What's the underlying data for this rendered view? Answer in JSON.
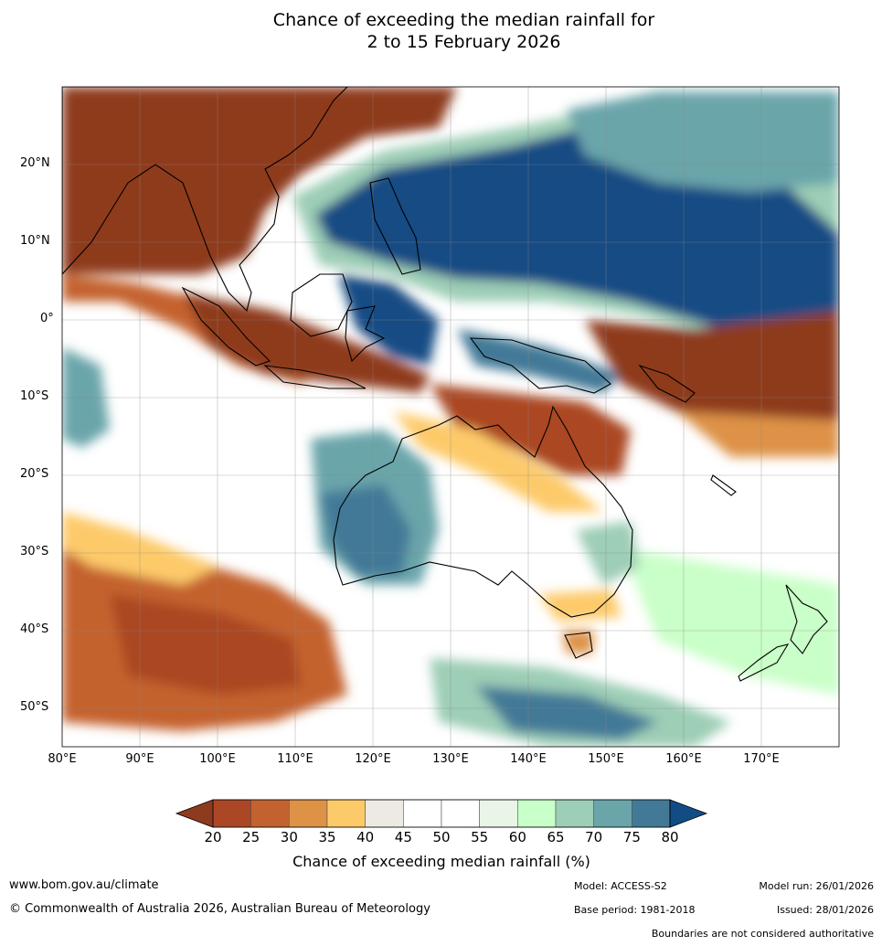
{
  "title_line1": "Chance of exceeding the median rainfall for",
  "title_line2": "2 to 15 February 2026",
  "lat_labels": [
    "20°N",
    "10°N",
    "0°",
    "10°S",
    "20°S",
    "30°S",
    "40°S",
    "50°S"
  ],
  "lon_labels": [
    "80°E",
    "90°E",
    "100°E",
    "110°E",
    "120°E",
    "130°E",
    "140°E",
    "150°E",
    "160°E",
    "170°E"
  ],
  "colorbar": {
    "ticks": [
      "20",
      "25",
      "30",
      "35",
      "40",
      "45",
      "50",
      "55",
      "60",
      "65",
      "70",
      "75",
      "80"
    ],
    "colors": [
      "#8e3a1f",
      "#ab4724",
      "#c4622f",
      "#dd9246",
      "#fdca6a",
      "#edeae4",
      "#ffffff",
      "#ffffff",
      "#e9f5e6",
      "#c9ffc8",
      "#9dceb6",
      "#6aa5aa",
      "#427997",
      "#124c84"
    ],
    "label": "Chance of exceeding median rainfall (%)"
  },
  "footer": {
    "website": "www.bom.gov.au/climate",
    "copyright": "© Commonwealth of Australia 2026, Australian Bureau of Meteorology",
    "model": "Model: ACCESS-S2",
    "base_period": "Base period: 1981-2018",
    "model_run": "Model run: 26/01/2026",
    "issued": "Issued: 28/01/2026",
    "boundaries": "Boundaries are not considered authoritative"
  }
}
